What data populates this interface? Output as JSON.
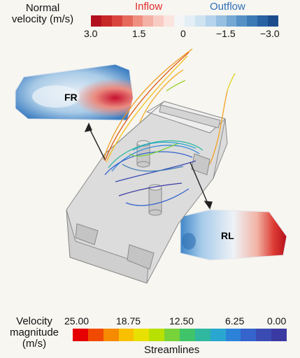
{
  "normal_velocity": {
    "title_line1": "Normal",
    "title_line2": "velocity (m/s)",
    "inflow_label": "Inflow",
    "outflow_label": "Outflow",
    "inflow_color": "#e02a2a",
    "outflow_color": "#2f6fb6",
    "ticks": [
      "3.0",
      "1.5",
      "0",
      "−1.5",
      "−3.0"
    ],
    "colors": [
      "#b2101e",
      "#c62828",
      "#d9453e",
      "#e56a5c",
      "#ef8f80",
      "#f4b1a6",
      "#f8ccc4",
      "#fbe3de",
      "#f3f5f7",
      "#e3eef6",
      "#cfe3f1",
      "#b5d3ea",
      "#96bfe0",
      "#75a8d3",
      "#5591c5",
      "#3c7ab6",
      "#2a62a3",
      "#1d4c8d"
    ]
  },
  "panels": {
    "fr_label": "FR",
    "rl_label": "RL"
  },
  "velocity_magnitude": {
    "title_line1": "Velocity",
    "title_line2": "magnitude",
    "title_line3": "(m/s)",
    "ticks": [
      "25.00",
      "18.75",
      "12.50",
      "6.25",
      "0.00"
    ],
    "caption": "Streamlines",
    "colors": [
      "#e60000",
      "#f04a00",
      "#f68a00",
      "#f9c000",
      "#e8e000",
      "#b8e000",
      "#78d23a",
      "#3fc46a",
      "#2fb7a0",
      "#2aa7d0",
      "#2c82d8",
      "#3464cc",
      "#3a4cb4",
      "#3b3aa2"
    ]
  }
}
